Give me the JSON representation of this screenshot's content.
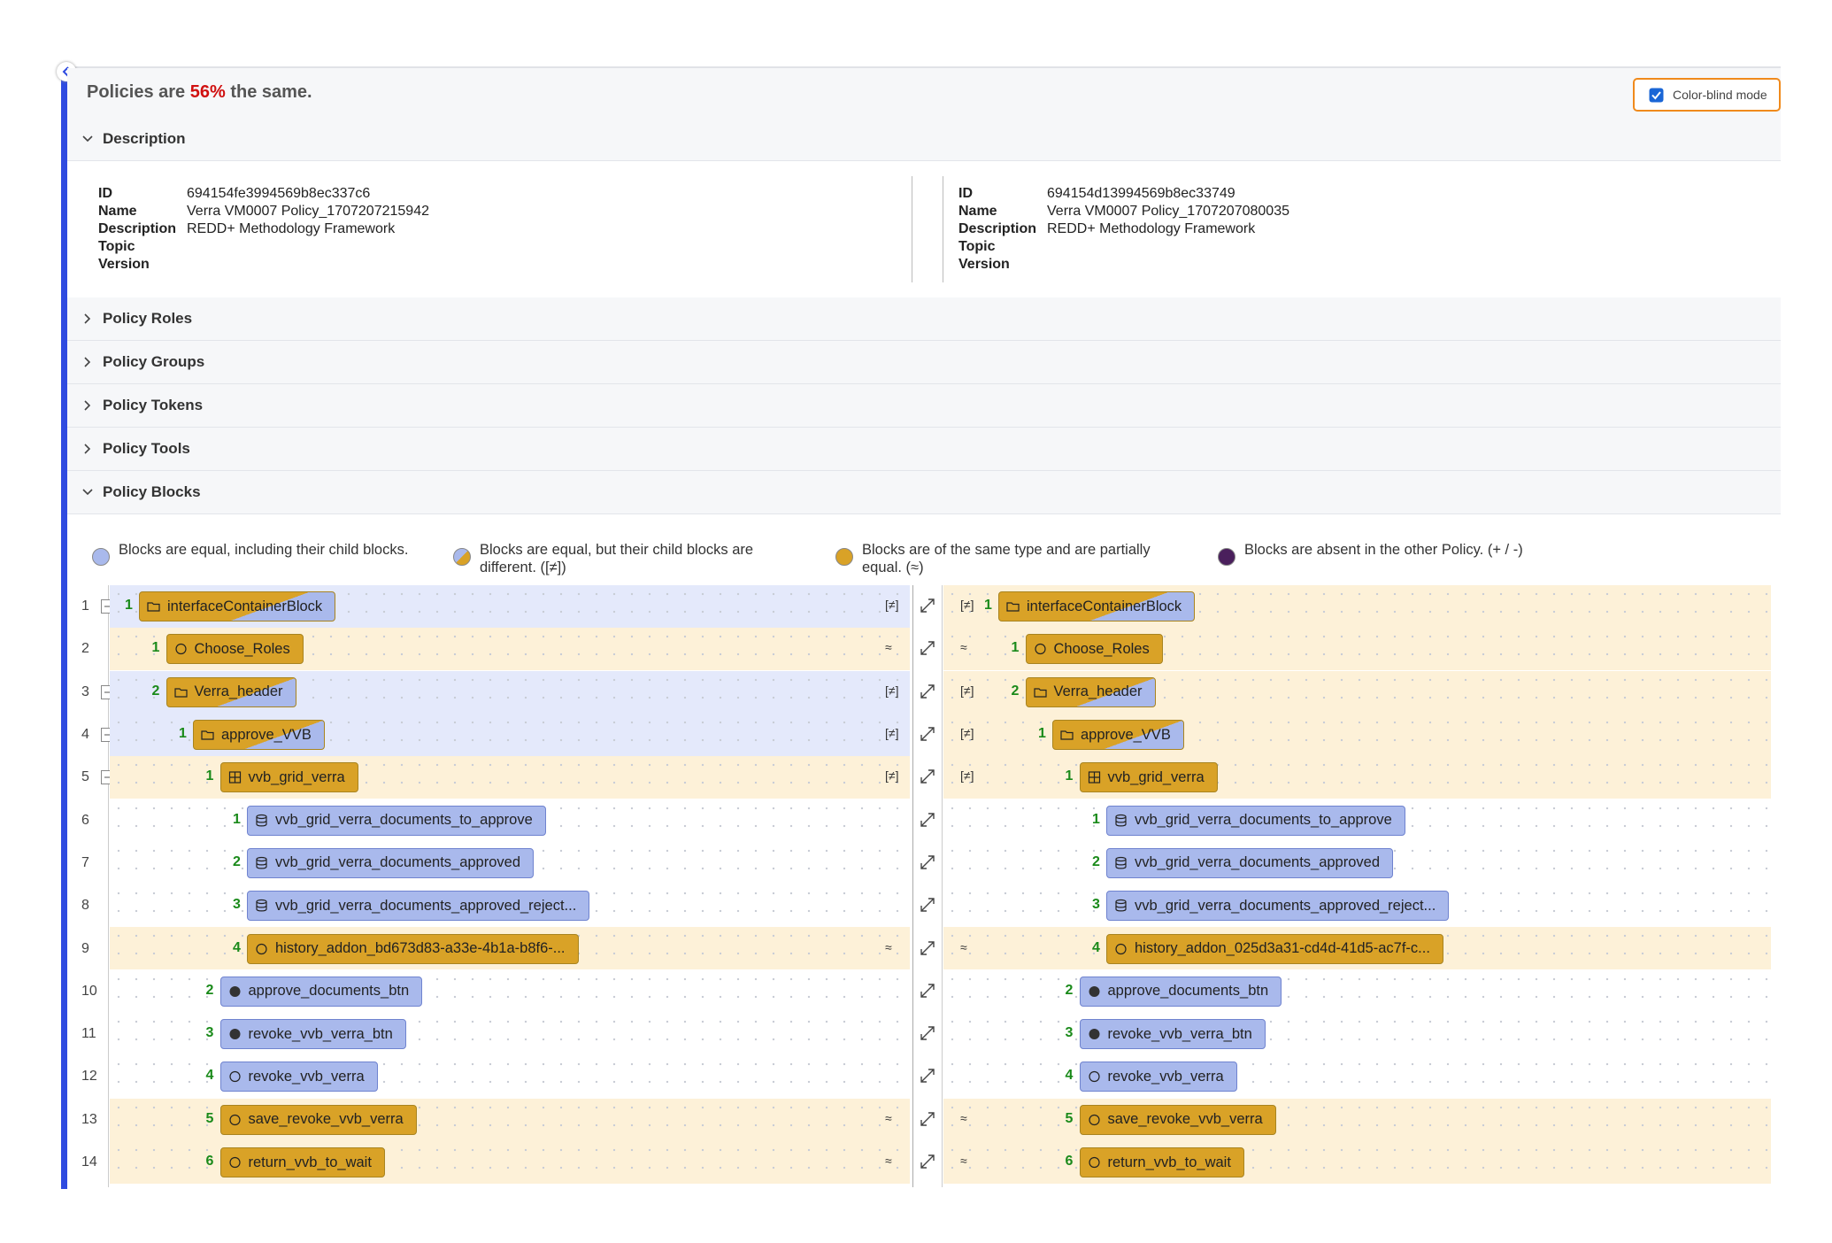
{
  "header": {
    "prefix": "Policies are",
    "percent": "56%",
    "suffix": "the same.",
    "toggle": "Color-blind mode"
  },
  "sections": [
    "Description",
    "Policy Roles",
    "Policy Groups",
    "Policy Tokens",
    "Policy Tools",
    "Policy Blocks"
  ],
  "description": {
    "labels": [
      "ID",
      "Name",
      "Description",
      "Topic",
      "Version"
    ],
    "left": [
      "694154fe3994569b8ec337c6",
      "Verra VM0007 Policy_1707207215942",
      "REDD+ Methodology Framework",
      "",
      ""
    ],
    "right": [
      "694154d13994569b8ec33749",
      "Verra VM0007 Policy_1707207080035",
      "REDD+ Methodology Framework",
      "",
      ""
    ]
  },
  "legend": [
    {
      "text": "Blocks are equal, including their child blocks.",
      "color": [
        "#a9b9ec"
      ]
    },
    {
      "text": "Blocks are equal, but their child blocks are different. ([≠])",
      "color": [
        "#a9b9ec",
        "#d9a227"
      ]
    },
    {
      "text": "Blocks are of the same type and are partially equal. (≈)",
      "color": [
        "#d9a227"
      ]
    },
    {
      "text": "Blocks are absent in the other Policy. (+ / -)",
      "color": [
        "#4a1f5c"
      ]
    }
  ],
  "rows": [
    {
      "n": 1,
      "level": 0,
      "collapsible": true,
      "left": {
        "index": 1,
        "name": "interfaceContainerBlock",
        "mark": "[≠]",
        "bg": "#e4e9fb",
        "fill": [
          "#d9a227",
          "#a9b9ec"
        ]
      },
      "right": {
        "index": 1,
        "name": "interfaceContainerBlock",
        "mark": "[≠]",
        "bg": "#fdf1d8",
        "fill": [
          "#d9a227",
          "#a9b9ec"
        ]
      }
    },
    {
      "n": 2,
      "level": 1,
      "collapsible": false,
      "left": {
        "index": 1,
        "name": "Choose_Roles",
        "mark": "≈",
        "bg": "#fdf1d8",
        "fill": [
          "#d9a227"
        ]
      },
      "right": {
        "index": 1,
        "name": "Choose_Roles",
        "mark": "≈",
        "bg": "#fdf1d8",
        "fill": [
          "#d9a227"
        ]
      }
    },
    {
      "n": 3,
      "level": 1,
      "collapsible": true,
      "left": {
        "index": 2,
        "name": "Verra_header",
        "mark": "[≠]",
        "bg": "#e4e9fb",
        "fill": [
          "#d9a227",
          "#a9b9ec"
        ]
      },
      "right": {
        "index": 2,
        "name": "Verra_header",
        "mark": "[≠]",
        "bg": "#fdf1d8",
        "fill": [
          "#d9a227",
          "#a9b9ec"
        ]
      }
    },
    {
      "n": 4,
      "level": 2,
      "collapsible": true,
      "left": {
        "index": 1,
        "name": "approve_VVB",
        "mark": "[≠]",
        "bg": "#e4e9fb",
        "fill": [
          "#d9a227",
          "#a9b9ec"
        ]
      },
      "right": {
        "index": 1,
        "name": "approve_VVB",
        "mark": "[≠]",
        "bg": "#fdf1d8",
        "fill": [
          "#d9a227",
          "#a9b9ec"
        ]
      }
    },
    {
      "n": 5,
      "level": 3,
      "collapsible": true,
      "left": {
        "index": 1,
        "name": "vvb_grid_verra",
        "mark": "[≠]",
        "bg": "#fdf1d8",
        "fill": [
          "#d9a227"
        ]
      },
      "right": {
        "index": 1,
        "name": "vvb_grid_verra",
        "mark": "[≠]",
        "bg": "#fdf1d8",
        "fill": [
          "#d9a227"
        ]
      }
    },
    {
      "n": 6,
      "level": 4,
      "collapsible": false,
      "left": {
        "index": 1,
        "name": "vvb_grid_verra_documents_to_approve",
        "bg": "#ffffff",
        "fill": [
          "#a9b9ec"
        ]
      },
      "right": {
        "index": 1,
        "name": "vvb_grid_verra_documents_to_approve",
        "bg": "#ffffff",
        "fill": [
          "#a9b9ec"
        ]
      }
    },
    {
      "n": 7,
      "level": 4,
      "collapsible": false,
      "left": {
        "index": 2,
        "name": "vvb_grid_verra_documents_approved",
        "bg": "#ffffff",
        "fill": [
          "#a9b9ec"
        ]
      },
      "right": {
        "index": 2,
        "name": "vvb_grid_verra_documents_approved",
        "bg": "#ffffff",
        "fill": [
          "#a9b9ec"
        ]
      }
    },
    {
      "n": 8,
      "level": 4,
      "collapsible": false,
      "left": {
        "index": 3,
        "name": "vvb_grid_verra_documents_approved_reject...",
        "bg": "#ffffff",
        "fill": [
          "#a9b9ec"
        ]
      },
      "right": {
        "index": 3,
        "name": "vvb_grid_verra_documents_approved_reject...",
        "bg": "#ffffff",
        "fill": [
          "#a9b9ec"
        ]
      }
    },
    {
      "n": 9,
      "level": 4,
      "collapsible": false,
      "left": {
        "index": 4,
        "name": "history_addon_bd673d83-a33e-4b1a-b8f6-...",
        "mark": "≈",
        "bg": "#fdf1d8",
        "fill": [
          "#d9a227"
        ]
      },
      "right": {
        "index": 4,
        "name": "history_addon_025d3a31-cd4d-41d5-ac7f-c...",
        "mark": "≈",
        "bg": "#fdf1d8",
        "fill": [
          "#d9a227"
        ]
      }
    },
    {
      "n": 10,
      "level": 3,
      "collapsible": false,
      "left": {
        "index": 2,
        "name": "approve_documents_btn",
        "bg": "#ffffff",
        "fill": [
          "#a9b9ec"
        ]
      },
      "right": {
        "index": 2,
        "name": "approve_documents_btn",
        "bg": "#ffffff",
        "fill": [
          "#a9b9ec"
        ]
      }
    },
    {
      "n": 11,
      "level": 3,
      "collapsible": false,
      "left": {
        "index": 3,
        "name": "revoke_vvb_verra_btn",
        "bg": "#ffffff",
        "fill": [
          "#a9b9ec"
        ]
      },
      "right": {
        "index": 3,
        "name": "revoke_vvb_verra_btn",
        "bg": "#ffffff",
        "fill": [
          "#a9b9ec"
        ]
      }
    },
    {
      "n": 12,
      "level": 3,
      "collapsible": false,
      "left": {
        "index": 4,
        "name": "revoke_vvb_verra",
        "bg": "#ffffff",
        "fill": [
          "#a9b9ec"
        ]
      },
      "right": {
        "index": 4,
        "name": "revoke_vvb_verra",
        "bg": "#ffffff",
        "fill": [
          "#a9b9ec"
        ]
      }
    },
    {
      "n": 13,
      "level": 3,
      "collapsible": false,
      "left": {
        "index": 5,
        "name": "save_revoke_vvb_verra",
        "mark": "≈",
        "bg": "#fdf1d8",
        "fill": [
          "#d9a227"
        ]
      },
      "right": {
        "index": 5,
        "name": "save_revoke_vvb_verra",
        "mark": "≈",
        "bg": "#fdf1d8",
        "fill": [
          "#d9a227"
        ]
      }
    },
    {
      "n": 14,
      "level": 3,
      "collapsible": false,
      "left": {
        "index": 6,
        "name": "return_vvb_to_wait",
        "mark": "≈",
        "bg": "#fdf1d8",
        "fill": [
          "#d9a227"
        ]
      },
      "right": {
        "index": 6,
        "name": "return_vvb_to_wait",
        "mark": "≈",
        "bg": "#fdf1d8",
        "fill": [
          "#d9a227"
        ]
      }
    }
  ]
}
